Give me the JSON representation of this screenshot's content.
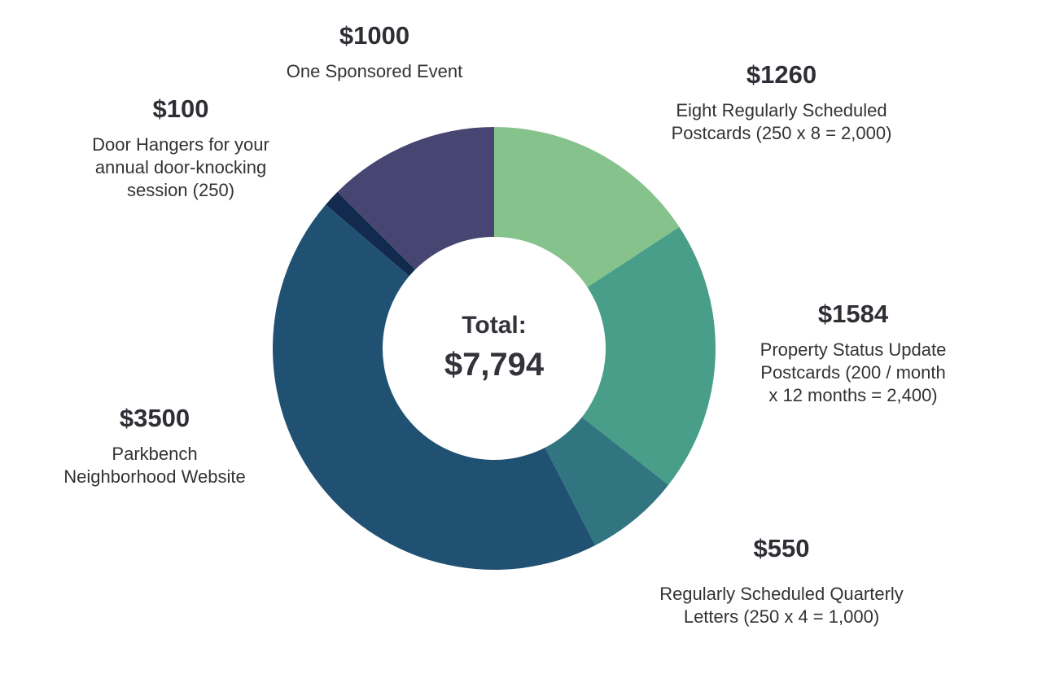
{
  "chart_data": {
    "type": "pie",
    "style": "donut",
    "center": {
      "label": "Total:",
      "value": "$7,794"
    },
    "slices": [
      {
        "name": "Eight Regularly Scheduled Postcards (250 x 8 = 2,000)",
        "amount_label": "$1260",
        "value": 1260,
        "color": "#86c28c",
        "description": [
          "Eight Regularly Scheduled",
          "Postcards (250 x 8 = 2,000)"
        ]
      },
      {
        "name": "Property Status Update Postcards (200 / month x 12 months = 2,400)",
        "amount_label": "$1584",
        "value": 1584,
        "color": "#489e89",
        "description": [
          "Property Status Update",
          "Postcards (200 / month",
          "x 12 months = 2,400)"
        ]
      },
      {
        "name": "Regularly Scheduled Quarterly Letters (250 x 4 = 1,000)",
        "amount_label": "$550",
        "value": 550,
        "color": "#317581",
        "description": [
          "Regularly Scheduled Quarterly",
          "Letters (250 x 4 = 1,000)"
        ]
      },
      {
        "name": "Parkbench Neighborhood Website",
        "amount_label": "$3500",
        "value": 3500,
        "color": "#215172",
        "description": [
          "Parkbench",
          "Neighborhood Website"
        ]
      },
      {
        "name": "Door Hangers for your annual door-knocking session (250)",
        "amount_label": "$100",
        "value": 100,
        "color": "#112a4e",
        "description": [
          "Door Hangers for your",
          "annual door-knocking",
          "session (250)"
        ]
      },
      {
        "name": "One Sponsored Event",
        "amount_label": "$1000",
        "value": 1000,
        "color": "#474572",
        "description": [
          "One Sponsored Event"
        ]
      }
    ]
  }
}
